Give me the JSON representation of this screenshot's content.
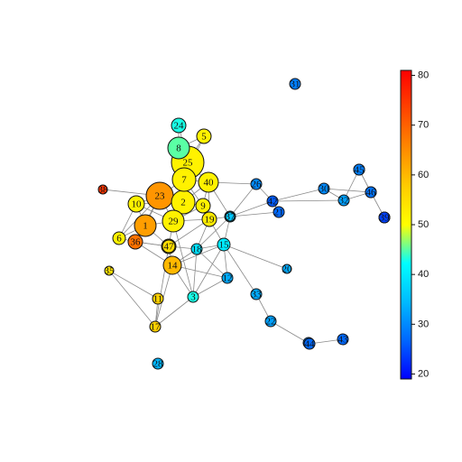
{
  "graph": {
    "nodes": [
      {
        "id": "n1",
        "label": "1",
        "value": 63
      },
      {
        "id": "n2",
        "label": "2",
        "value": 52
      },
      {
        "id": "n3",
        "label": "3",
        "value": 43
      },
      {
        "id": "n4",
        "label": "4",
        "value": 39
      },
      {
        "id": "n5",
        "label": "5",
        "value": 52
      },
      {
        "id": "n6",
        "label": "6",
        "value": 52
      },
      {
        "id": "n7",
        "label": "7",
        "value": 52
      },
      {
        "id": "n8",
        "label": "8",
        "value": 45
      },
      {
        "id": "n9",
        "label": "9",
        "value": 52
      },
      {
        "id": "n10",
        "label": "10",
        "value": 52
      },
      {
        "id": "n11",
        "label": "11",
        "value": 57
      },
      {
        "id": "n12",
        "label": "12",
        "value": 33
      },
      {
        "id": "n13",
        "label": "13",
        "value": 35
      },
      {
        "id": "n14",
        "label": "14",
        "value": 60
      },
      {
        "id": "n15",
        "label": "15",
        "value": 40
      },
      {
        "id": "n16",
        "label": "16",
        "value": 53
      },
      {
        "id": "n17",
        "label": "17",
        "value": 57
      },
      {
        "id": "n18",
        "label": "18",
        "value": 39
      },
      {
        "id": "n19",
        "label": "19",
        "value": 53
      },
      {
        "id": "n20",
        "label": "20",
        "value": 33
      },
      {
        "id": "n21",
        "label": "21",
        "value": 27
      },
      {
        "id": "n22",
        "label": "22",
        "value": 32
      },
      {
        "id": "n23",
        "label": "23",
        "value": 64
      },
      {
        "id": "n24",
        "label": "24",
        "value": 43
      },
      {
        "id": "n25",
        "label": "25",
        "value": 52
      },
      {
        "id": "n26",
        "label": "26",
        "value": 30
      },
      {
        "id": "n27",
        "label": "27",
        "value": 30
      },
      {
        "id": "n28",
        "label": "28",
        "value": 34
      },
      {
        "id": "n29",
        "label": "29",
        "value": 52
      },
      {
        "id": "n30",
        "label": "30",
        "value": 30
      },
      {
        "id": "n31",
        "label": "31",
        "value": 29
      },
      {
        "id": "n32",
        "label": "32",
        "value": 32
      },
      {
        "id": "n33",
        "label": "33",
        "value": 33
      },
      {
        "id": "n34",
        "label": "34",
        "value": 28
      },
      {
        "id": "n35",
        "label": "35",
        "value": 54
      },
      {
        "id": "n36",
        "label": "36",
        "value": 68
      },
      {
        "id": "n37",
        "label": "37",
        "value": 36
      },
      {
        "id": "n38",
        "label": "38",
        "value": 75
      },
      {
        "id": "n39",
        "label": "39",
        "value": 24
      },
      {
        "id": "n40",
        "label": "40",
        "value": 52
      },
      {
        "id": "n41",
        "label": "41",
        "value": 29
      },
      {
        "id": "n42",
        "label": "42",
        "value": 26
      },
      {
        "id": "n43",
        "label": "43",
        "value": 27
      },
      {
        "id": "n44",
        "label": "44",
        "value": 27
      },
      {
        "id": "n45",
        "label": "45",
        "value": 29
      },
      {
        "id": "n46",
        "label": "46",
        "value": 28
      },
      {
        "id": "n47",
        "label": "47",
        "value": 55
      }
    ],
    "edges": [
      [
        "n8",
        "n24"
      ],
      [
        "n8",
        "n25"
      ],
      [
        "n8",
        "n5"
      ],
      [
        "n8",
        "n7"
      ],
      [
        "n5",
        "n25"
      ],
      [
        "n5",
        "n7"
      ],
      [
        "n25",
        "n7"
      ],
      [
        "n25",
        "n40"
      ],
      [
        "n25",
        "n2"
      ],
      [
        "n24",
        "n25"
      ],
      [
        "n7",
        "n40"
      ],
      [
        "n7",
        "n2"
      ],
      [
        "n7",
        "n23"
      ],
      [
        "n7",
        "n9"
      ],
      [
        "n2",
        "n23"
      ],
      [
        "n2",
        "n29"
      ],
      [
        "n2",
        "n9"
      ],
      [
        "n2",
        "n40"
      ],
      [
        "n2",
        "n10"
      ],
      [
        "n23",
        "n38"
      ],
      [
        "n23",
        "n10"
      ],
      [
        "n23",
        "n1"
      ],
      [
        "n23",
        "n29"
      ],
      [
        "n23",
        "n6"
      ],
      [
        "n23",
        "n36"
      ],
      [
        "n1",
        "n29"
      ],
      [
        "n1",
        "n36"
      ],
      [
        "n1",
        "n6"
      ],
      [
        "n1",
        "n10"
      ],
      [
        "n1",
        "n16"
      ],
      [
        "n29",
        "n19"
      ],
      [
        "n29",
        "n9"
      ],
      [
        "n29",
        "n16"
      ],
      [
        "n29",
        "n3"
      ],
      [
        "n9",
        "n19"
      ],
      [
        "n9",
        "n40"
      ],
      [
        "n40",
        "n4"
      ],
      [
        "n40",
        "n19"
      ],
      [
        "n40",
        "n26"
      ],
      [
        "n19",
        "n4"
      ],
      [
        "n19",
        "n15"
      ],
      [
        "n19",
        "n18"
      ],
      [
        "n19",
        "n16"
      ],
      [
        "n4",
        "n15"
      ],
      [
        "n4",
        "n21"
      ],
      [
        "n4",
        "n18"
      ],
      [
        "n4",
        "n26"
      ],
      [
        "n4",
        "n42"
      ],
      [
        "n26",
        "n42"
      ],
      [
        "n42",
        "n21"
      ],
      [
        "n42",
        "n30"
      ],
      [
        "n42",
        "n32"
      ],
      [
        "n30",
        "n32"
      ],
      [
        "n30",
        "n34"
      ],
      [
        "n34",
        "n45"
      ],
      [
        "n45",
        "n32"
      ],
      [
        "n45",
        "n46"
      ],
      [
        "n32",
        "n46"
      ],
      [
        "n46",
        "n39"
      ],
      [
        "n15",
        "n18"
      ],
      [
        "n15",
        "n33"
      ],
      [
        "n15",
        "n20"
      ],
      [
        "n15",
        "n14"
      ],
      [
        "n15",
        "n12"
      ],
      [
        "n15",
        "n3"
      ],
      [
        "n18",
        "n16"
      ],
      [
        "n18",
        "n14"
      ],
      [
        "n18",
        "n3"
      ],
      [
        "n18",
        "n12"
      ],
      [
        "n16",
        "n14"
      ],
      [
        "n16",
        "n36"
      ],
      [
        "n16",
        "n47"
      ],
      [
        "n16",
        "n17"
      ],
      [
        "n14",
        "n47"
      ],
      [
        "n14",
        "n17"
      ],
      [
        "n14",
        "n3"
      ],
      [
        "n14",
        "n12"
      ],
      [
        "n14",
        "n36"
      ],
      [
        "n17",
        "n3"
      ],
      [
        "n17",
        "n35"
      ],
      [
        "n17",
        "n11"
      ],
      [
        "n35",
        "n11"
      ],
      [
        "n12",
        "n3"
      ],
      [
        "n33",
        "n22"
      ],
      [
        "n22",
        "n44"
      ],
      [
        "n44",
        "n43"
      ],
      [
        "n36",
        "n47"
      ],
      [
        "n6",
        "n36"
      ],
      [
        "n10",
        "n6"
      ],
      [
        "n10",
        "n29"
      ],
      [
        "n37",
        "n4"
      ]
    ]
  },
  "legend": {
    "colorbar": {
      "min": 19,
      "max": 81,
      "ticks": [
        {
          "value": 20,
          "label": "20"
        },
        {
          "value": 30,
          "label": "30"
        },
        {
          "value": 40,
          "label": "40"
        },
        {
          "value": 50,
          "label": "50"
        },
        {
          "value": 60,
          "label": "60"
        },
        {
          "value": 70,
          "label": "70"
        },
        {
          "value": 80,
          "label": "80"
        }
      ],
      "gradient": [
        "#0000ff",
        "#0066ff",
        "#00bbff",
        "#00ffff",
        "#ffff00",
        "#ffcc00",
        "#ff8800",
        "#ff4400",
        "#ff0000"
      ]
    }
  },
  "palette": {
    "edge": "#8a8a8a",
    "outline": "#111111"
  }
}
